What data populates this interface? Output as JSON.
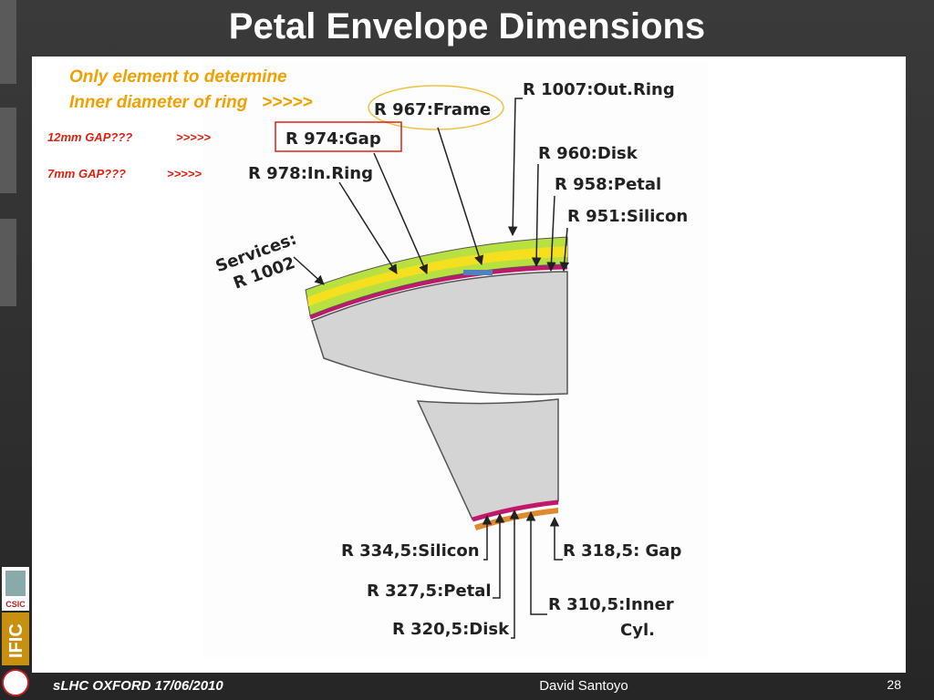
{
  "title": "Petal Envelope Dimensions",
  "notes": {
    "frame": [
      "Only element to determine",
      "Inner diameter of ring   >>>>>"
    ],
    "gap12": {
      "label": "12mm GAP???",
      "arrow": ">>>>>"
    },
    "gap7": {
      "label": "7mm GAP???",
      "arrow": ">>>>>"
    }
  },
  "diagram": {
    "top_labels": [
      "R 1007:Out.Ring",
      "R 967:Frame",
      "R 974:Gap",
      "R 960:Disk",
      "R 958:Petal",
      "R 951:Silicon",
      "R 978:In.Ring"
    ],
    "services": [
      "Services:",
      "R 1002"
    ],
    "bottom_labels": [
      "R 334,5:Silicon",
      "R 318,5: Gap",
      "R 327,5:Petal",
      "R 310,5:Inner",
      "Cyl.",
      "R 320,5:Disk"
    ]
  },
  "logos": [
    "CSIC",
    "IFIC"
  ],
  "footer": {
    "event": "sLHC OXFORD 17/06/2010",
    "author": "David Santoyo",
    "page": "28"
  }
}
